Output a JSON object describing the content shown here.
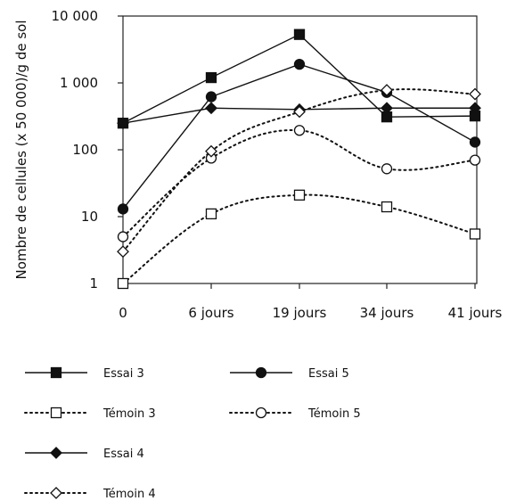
{
  "chart_data": {
    "type": "line",
    "title": "",
    "xlabel": "",
    "ylabel": "Nombre de cellules (x 50 000)/g de sol",
    "yscale": "log",
    "ylim": [
      1,
      10000
    ],
    "grid": false,
    "categories": [
      "0",
      "6 jours",
      "19 jours",
      "34 jours",
      "41 jours"
    ],
    "yticks": [
      {
        "value": 1,
        "label": "1"
      },
      {
        "value": 10,
        "label": "10"
      },
      {
        "value": 100,
        "label": "100"
      },
      {
        "value": 1000,
        "label": "1 000"
      },
      {
        "value": 10000,
        "label": "10 000"
      }
    ],
    "legend_placement": "bottom",
    "series": [
      {
        "name": "Essai 3",
        "values": [
          250,
          1200,
          5300,
          310,
          320
        ],
        "marker": "square-filled",
        "dash": "solid"
      },
      {
        "name": "Essai 5",
        "values": [
          13,
          620,
          1900,
          720,
          130
        ],
        "marker": "circle-filled",
        "dash": "solid"
      },
      {
        "name": "Témoin 3",
        "values": [
          1,
          11,
          21,
          14,
          5.5
        ],
        "marker": "square-open",
        "dash": "dotted"
      },
      {
        "name": "Témoin 5",
        "values": [
          5,
          75,
          195,
          52,
          70
        ],
        "marker": "circle-open",
        "dash": "dotted"
      },
      {
        "name": "Essai 4",
        "values": [
          250,
          420,
          400,
          420,
          420
        ],
        "marker": "diamond-filled",
        "dash": "solid"
      },
      {
        "name": "Témoin 4",
        "values": [
          3,
          95,
          370,
          780,
          680
        ],
        "marker": "diamond-open",
        "dash": "dotted"
      }
    ]
  }
}
